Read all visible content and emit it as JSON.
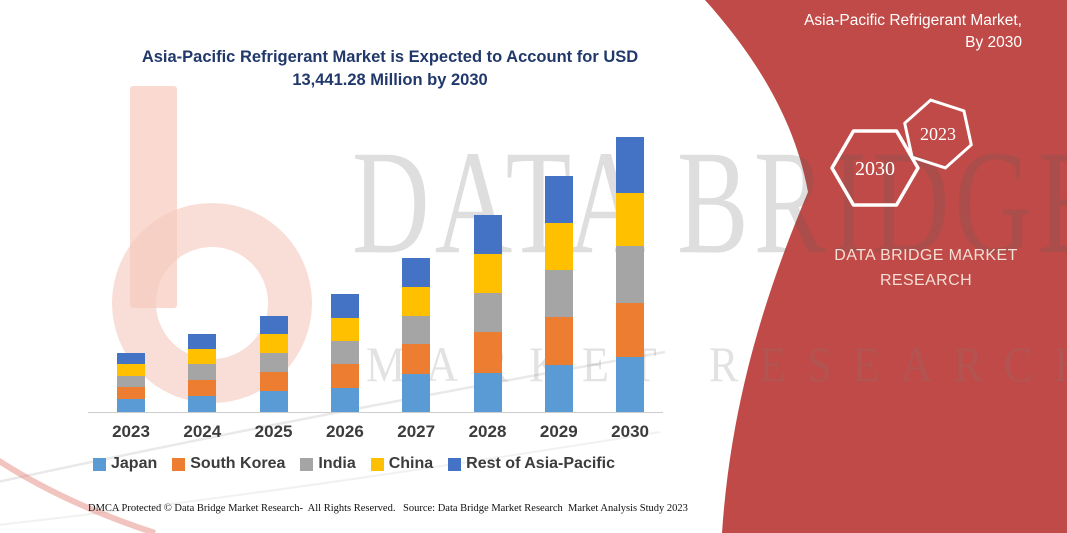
{
  "header": {
    "chart_title": "Asia-Pacific Refrigerant Market is Expected to Account for USD 13,441.28 Million by 2030"
  },
  "chart_data": {
    "type": "bar",
    "stacked": true,
    "unit": "USD Million",
    "title": "Asia-Pacific Refrigerant Market is Expected to Account for USD 13,441.28 Million by 2030",
    "xlabel": "",
    "ylabel": "",
    "gridlines": false,
    "y_axis_visible": false,
    "legend_position": "bottom",
    "ylim": [
      0,
      14000
    ],
    "categories": [
      "2023",
      "2024",
      "2025",
      "2026",
      "2027",
      "2028",
      "2029",
      "2030"
    ],
    "series": [
      {
        "name": "Japan",
        "color": "#5B9BD5",
        "values": [
          620,
          800,
          1010,
          1185,
          1840,
          1905,
          2275,
          2665
        ]
      },
      {
        "name": "South Korea",
        "color": "#ED7D31",
        "values": [
          585,
          780,
          940,
          1140,
          1465,
          1985,
          2345,
          2655
        ]
      },
      {
        "name": "India",
        "color": "#A5A5A5",
        "values": [
          555,
          780,
          930,
          1140,
          1400,
          1920,
          2330,
          2795
        ]
      },
      {
        "name": "China",
        "color": "#FFC000",
        "values": [
          585,
          730,
          915,
          1140,
          1415,
          1905,
          2280,
          2575
        ]
      },
      {
        "name": "Rest of Asia-Pacific",
        "color": "#4472C4",
        "values": [
          555,
          700,
          880,
          1140,
          1415,
          1920,
          2310,
          2751.28
        ]
      }
    ],
    "totals_by_year": [
      2900,
      3790,
      4675,
      5745,
      7535,
      9635,
      11540,
      13441.28
    ],
    "axis_line_color": "#CDCDCD"
  },
  "footer": {
    "left": "DMCA Protected © Data Bridge Market Research-  All Rights Reserved.",
    "source": "Source: Data Bridge Market Research  Market Analysis Study 2023"
  },
  "side_panel": {
    "background": "#C04A47",
    "title": "Asia-Pacific Refrigerant Market,\nBy 2030",
    "hexagons": [
      {
        "label": "2030"
      },
      {
        "label": "2023"
      }
    ],
    "brand": "DATA BRIDGE MARKET RESEARCH"
  },
  "watermark": {
    "line1": "DATA BRIDGE",
    "line2": "MARKET RESEARCH"
  },
  "colors": {
    "title_text": "#21386B",
    "axis_text": "#3C3C3C",
    "logo_salmon": "#F6CABE"
  }
}
